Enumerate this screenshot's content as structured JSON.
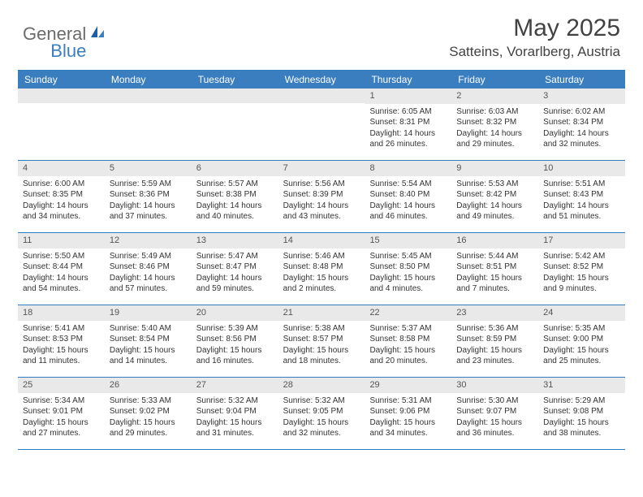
{
  "logo": {
    "part1": "General",
    "part2": "Blue"
  },
  "title": "May 2025",
  "location": "Satteins, Vorarlberg, Austria",
  "colors": {
    "header_bg": "#3a7ebf",
    "header_text": "#ffffff",
    "daynum_bg": "#e9e9e9",
    "border": "#2f7cc0",
    "logo_gray": "#6b6b6b",
    "logo_blue": "#3a7ebf",
    "text": "#333333"
  },
  "dayNames": [
    "Sunday",
    "Monday",
    "Tuesday",
    "Wednesday",
    "Thursday",
    "Friday",
    "Saturday"
  ],
  "weeks": [
    [
      {
        "n": "",
        "sr": "",
        "ss": "",
        "dl": ""
      },
      {
        "n": "",
        "sr": "",
        "ss": "",
        "dl": ""
      },
      {
        "n": "",
        "sr": "",
        "ss": "",
        "dl": ""
      },
      {
        "n": "",
        "sr": "",
        "ss": "",
        "dl": ""
      },
      {
        "n": "1",
        "sr": "Sunrise: 6:05 AM",
        "ss": "Sunset: 8:31 PM",
        "dl": "Daylight: 14 hours and 26 minutes."
      },
      {
        "n": "2",
        "sr": "Sunrise: 6:03 AM",
        "ss": "Sunset: 8:32 PM",
        "dl": "Daylight: 14 hours and 29 minutes."
      },
      {
        "n": "3",
        "sr": "Sunrise: 6:02 AM",
        "ss": "Sunset: 8:34 PM",
        "dl": "Daylight: 14 hours and 32 minutes."
      }
    ],
    [
      {
        "n": "4",
        "sr": "Sunrise: 6:00 AM",
        "ss": "Sunset: 8:35 PM",
        "dl": "Daylight: 14 hours and 34 minutes."
      },
      {
        "n": "5",
        "sr": "Sunrise: 5:59 AM",
        "ss": "Sunset: 8:36 PM",
        "dl": "Daylight: 14 hours and 37 minutes."
      },
      {
        "n": "6",
        "sr": "Sunrise: 5:57 AM",
        "ss": "Sunset: 8:38 PM",
        "dl": "Daylight: 14 hours and 40 minutes."
      },
      {
        "n": "7",
        "sr": "Sunrise: 5:56 AM",
        "ss": "Sunset: 8:39 PM",
        "dl": "Daylight: 14 hours and 43 minutes."
      },
      {
        "n": "8",
        "sr": "Sunrise: 5:54 AM",
        "ss": "Sunset: 8:40 PM",
        "dl": "Daylight: 14 hours and 46 minutes."
      },
      {
        "n": "9",
        "sr": "Sunrise: 5:53 AM",
        "ss": "Sunset: 8:42 PM",
        "dl": "Daylight: 14 hours and 49 minutes."
      },
      {
        "n": "10",
        "sr": "Sunrise: 5:51 AM",
        "ss": "Sunset: 8:43 PM",
        "dl": "Daylight: 14 hours and 51 minutes."
      }
    ],
    [
      {
        "n": "11",
        "sr": "Sunrise: 5:50 AM",
        "ss": "Sunset: 8:44 PM",
        "dl": "Daylight: 14 hours and 54 minutes."
      },
      {
        "n": "12",
        "sr": "Sunrise: 5:49 AM",
        "ss": "Sunset: 8:46 PM",
        "dl": "Daylight: 14 hours and 57 minutes."
      },
      {
        "n": "13",
        "sr": "Sunrise: 5:47 AM",
        "ss": "Sunset: 8:47 PM",
        "dl": "Daylight: 14 hours and 59 minutes."
      },
      {
        "n": "14",
        "sr": "Sunrise: 5:46 AM",
        "ss": "Sunset: 8:48 PM",
        "dl": "Daylight: 15 hours and 2 minutes."
      },
      {
        "n": "15",
        "sr": "Sunrise: 5:45 AM",
        "ss": "Sunset: 8:50 PM",
        "dl": "Daylight: 15 hours and 4 minutes."
      },
      {
        "n": "16",
        "sr": "Sunrise: 5:44 AM",
        "ss": "Sunset: 8:51 PM",
        "dl": "Daylight: 15 hours and 7 minutes."
      },
      {
        "n": "17",
        "sr": "Sunrise: 5:42 AM",
        "ss": "Sunset: 8:52 PM",
        "dl": "Daylight: 15 hours and 9 minutes."
      }
    ],
    [
      {
        "n": "18",
        "sr": "Sunrise: 5:41 AM",
        "ss": "Sunset: 8:53 PM",
        "dl": "Daylight: 15 hours and 11 minutes."
      },
      {
        "n": "19",
        "sr": "Sunrise: 5:40 AM",
        "ss": "Sunset: 8:54 PM",
        "dl": "Daylight: 15 hours and 14 minutes."
      },
      {
        "n": "20",
        "sr": "Sunrise: 5:39 AM",
        "ss": "Sunset: 8:56 PM",
        "dl": "Daylight: 15 hours and 16 minutes."
      },
      {
        "n": "21",
        "sr": "Sunrise: 5:38 AM",
        "ss": "Sunset: 8:57 PM",
        "dl": "Daylight: 15 hours and 18 minutes."
      },
      {
        "n": "22",
        "sr": "Sunrise: 5:37 AM",
        "ss": "Sunset: 8:58 PM",
        "dl": "Daylight: 15 hours and 20 minutes."
      },
      {
        "n": "23",
        "sr": "Sunrise: 5:36 AM",
        "ss": "Sunset: 8:59 PM",
        "dl": "Daylight: 15 hours and 23 minutes."
      },
      {
        "n": "24",
        "sr": "Sunrise: 5:35 AM",
        "ss": "Sunset: 9:00 PM",
        "dl": "Daylight: 15 hours and 25 minutes."
      }
    ],
    [
      {
        "n": "25",
        "sr": "Sunrise: 5:34 AM",
        "ss": "Sunset: 9:01 PM",
        "dl": "Daylight: 15 hours and 27 minutes."
      },
      {
        "n": "26",
        "sr": "Sunrise: 5:33 AM",
        "ss": "Sunset: 9:02 PM",
        "dl": "Daylight: 15 hours and 29 minutes."
      },
      {
        "n": "27",
        "sr": "Sunrise: 5:32 AM",
        "ss": "Sunset: 9:04 PM",
        "dl": "Daylight: 15 hours and 31 minutes."
      },
      {
        "n": "28",
        "sr": "Sunrise: 5:32 AM",
        "ss": "Sunset: 9:05 PM",
        "dl": "Daylight: 15 hours and 32 minutes."
      },
      {
        "n": "29",
        "sr": "Sunrise: 5:31 AM",
        "ss": "Sunset: 9:06 PM",
        "dl": "Daylight: 15 hours and 34 minutes."
      },
      {
        "n": "30",
        "sr": "Sunrise: 5:30 AM",
        "ss": "Sunset: 9:07 PM",
        "dl": "Daylight: 15 hours and 36 minutes."
      },
      {
        "n": "31",
        "sr": "Sunrise: 5:29 AM",
        "ss": "Sunset: 9:08 PM",
        "dl": "Daylight: 15 hours and 38 minutes."
      }
    ]
  ]
}
